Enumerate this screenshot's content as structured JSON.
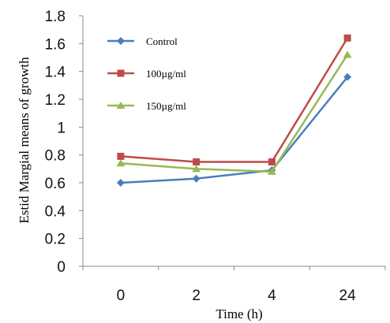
{
  "chart_data": {
    "type": "line",
    "categories": [
      "0",
      "2",
      "4",
      "24"
    ],
    "series": [
      {
        "name": "Control",
        "values": [
          0.6,
          0.63,
          0.69,
          1.36
        ],
        "color": "#4a7ebb",
        "marker": "diamond"
      },
      {
        "name": "100µg/ml",
        "values": [
          0.79,
          0.75,
          0.75,
          1.64
        ],
        "color": "#be4b48",
        "marker": "square"
      },
      {
        "name": "150µg/ml",
        "values": [
          0.74,
          0.7,
          0.68,
          1.52
        ],
        "color": "#98b954",
        "marker": "triangle"
      }
    ],
    "xlabel": "Time (h)",
    "ylabel": "Estid Margial means of growth",
    "ylim": [
      0,
      1.8
    ],
    "yticks": [
      "0",
      "0.2",
      "0.4",
      "0.6",
      "0.8",
      "1",
      "1.2",
      "1.4",
      "1.6",
      "1.8"
    ],
    "grid": false,
    "legend_position": "top-left"
  }
}
